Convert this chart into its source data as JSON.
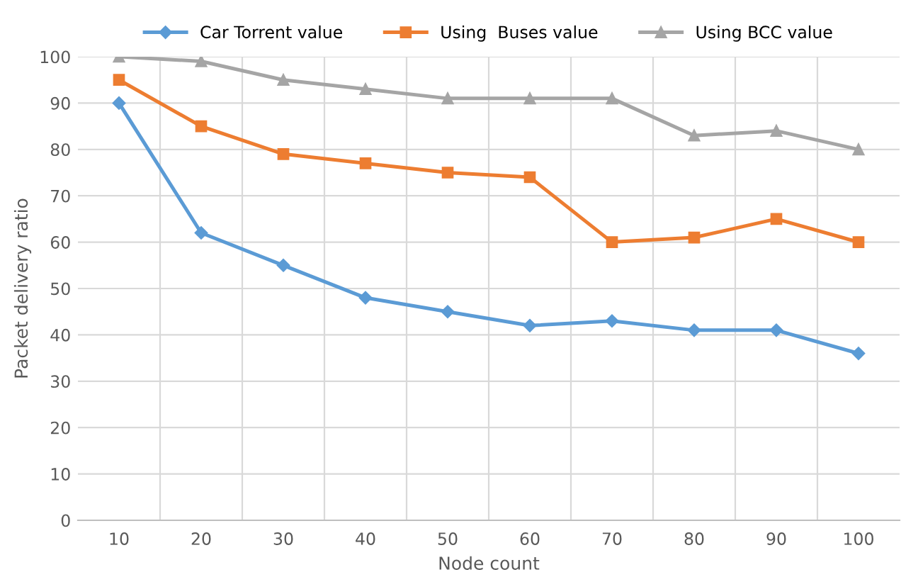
{
  "chart_data": {
    "type": "line",
    "xlabel": "Node count",
    "ylabel": "Packet delivery ratio",
    "categories": [
      "10",
      "20",
      "30",
      "40",
      "50",
      "60",
      "70",
      "80",
      "90",
      "100"
    ],
    "series": [
      {
        "name": "Car Torrent value",
        "color": "#5b9bd5",
        "marker": "diamond",
        "values": [
          90,
          62,
          55,
          48,
          45,
          42,
          43,
          41,
          41,
          36
        ]
      },
      {
        "name": "Using  Buses value",
        "color": "#ed7d31",
        "marker": "square",
        "values": [
          95,
          85,
          79,
          77,
          75,
          74,
          60,
          61,
          65,
          60
        ]
      },
      {
        "name": "Using BCC value",
        "color": "#a5a5a5",
        "marker": "triangle",
        "values": [
          100,
          99,
          95,
          93,
          91,
          91,
          91,
          83,
          84,
          80
        ]
      }
    ],
    "ylim": [
      0,
      100
    ],
    "yticks": [
      0,
      10,
      20,
      30,
      40,
      50,
      60,
      70,
      80,
      90,
      100
    ],
    "grid": true,
    "legend": "top",
    "line_style": "solid"
  }
}
